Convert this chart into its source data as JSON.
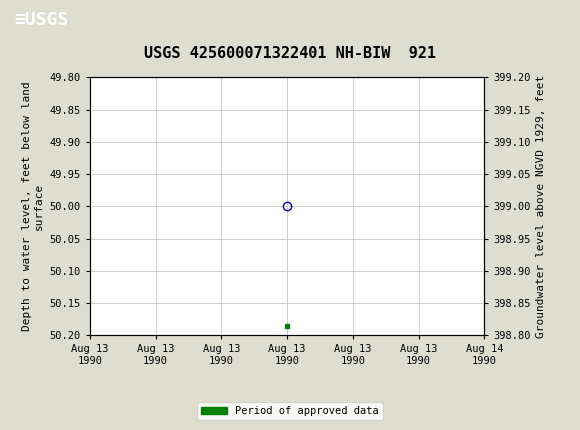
{
  "title": "USGS 425600071322401 NH-BIW  921",
  "ylabel_left": "Depth to water level, feet below land\nsurface",
  "ylabel_right": "Groundwater level above NGVD 1929, feet",
  "xlabel_ticks": [
    "Aug 13\n1990",
    "Aug 13\n1990",
    "Aug 13\n1990",
    "Aug 13\n1990",
    "Aug 13\n1990",
    "Aug 13\n1990",
    "Aug 14\n1990"
  ],
  "ylim_left": [
    50.2,
    49.8
  ],
  "ylim_right": [
    398.8,
    399.2
  ],
  "yticks_left": [
    49.8,
    49.85,
    49.9,
    49.95,
    50.0,
    50.05,
    50.1,
    50.15,
    50.2
  ],
  "yticks_right": [
    399.2,
    399.15,
    399.1,
    399.05,
    399.0,
    398.95,
    398.9,
    398.85,
    398.8
  ],
  "data_point_x": 3.0,
  "data_point_y_depth": 50.0,
  "data_point_color": "#0000cc",
  "data_point_marker": "o",
  "data_point_markerfacecolor": "none",
  "data_point_markersize": 6,
  "approved_x": 3.0,
  "approved_y": 50.185,
  "approved_color": "#008000",
  "approved_marker": "s",
  "approved_markersize": 3,
  "header_bg_color": "#1a6b3c",
  "bg_color": "#deded0",
  "plot_bg_color": "#ffffff",
  "grid_color": "#c8c8c8",
  "font_family": "monospace",
  "title_fontsize": 11,
  "tick_fontsize": 7.5,
  "label_fontsize": 8,
  "legend_label": "Period of approved data",
  "xmin": 0,
  "xmax": 6
}
